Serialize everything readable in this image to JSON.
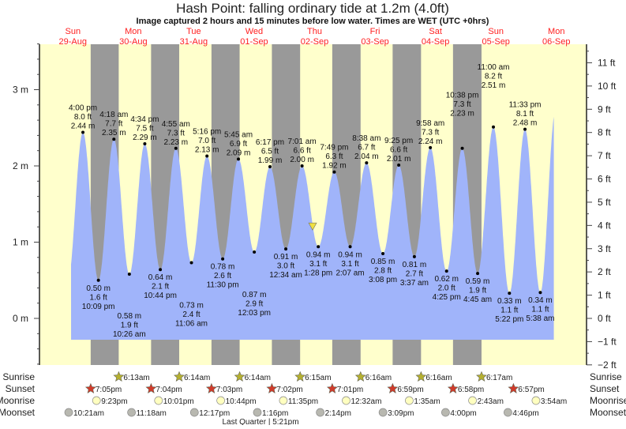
{
  "chart_data": {
    "type": "area",
    "title": "Hash Point: falling  ordinary tide at 1.2m (4.0ft)",
    "subtitle": "Image captured 2 hours and 15 minutes before low water. Times are WET (UTC +0hrs)",
    "days": [
      {
        "dow": "Sun",
        "date": "29-Aug"
      },
      {
        "dow": "Mon",
        "date": "30-Aug"
      },
      {
        "dow": "Tue",
        "date": "31-Aug"
      },
      {
        "dow": "Wed",
        "date": "01-Sep"
      },
      {
        "dow": "Thu",
        "date": "02-Sep"
      },
      {
        "dow": "Fri",
        "date": "03-Sep"
      },
      {
        "dow": "Sat",
        "date": "04-Sep"
      },
      {
        "dow": "Sun",
        "date": "05-Sep"
      },
      {
        "dow": "Mon",
        "date": "06-Sep"
      }
    ],
    "y_left": {
      "unit": "m",
      "range": [
        -0.6,
        3.6
      ],
      "ticks": [
        "0 m",
        "1 m",
        "2 m",
        "3 m"
      ]
    },
    "y_right": {
      "unit": "ft",
      "ticks": [
        "−2 ft",
        "−1 ft",
        "0 ft",
        "1 ft",
        "2 ft",
        "3 ft",
        "4 ft",
        "5 ft",
        "6 ft",
        "7 ft",
        "8 ft",
        "9 ft",
        "10 ft",
        "11 ft"
      ]
    },
    "current": {
      "date": "02-Sep",
      "time": "11:13am",
      "height_m": 1.2,
      "height_ft": 4.0,
      "state": "falling"
    },
    "extremes": [
      {
        "type": "high",
        "date": "29-Aug",
        "time": "4:00 pm",
        "m": "2.44 m",
        "ft": "8.0 ft"
      },
      {
        "type": "low",
        "date": "29-Aug",
        "time": "10:09 pm",
        "m": "0.50 m",
        "ft": "1.6 ft"
      },
      {
        "type": "high",
        "date": "30-Aug",
        "time": "4:18 am",
        "m": "2.35 m",
        "ft": "7.7 ft"
      },
      {
        "type": "low",
        "date": "30-Aug",
        "time": "10:26 am",
        "m": "0.58 m",
        "ft": "1.9 ft"
      },
      {
        "type": "high",
        "date": "30-Aug",
        "time": "4:34 pm",
        "m": "2.29 m",
        "ft": "7.5 ft"
      },
      {
        "type": "low",
        "date": "30-Aug",
        "time": "10:44 pm",
        "m": "0.64 m",
        "ft": "2.1 ft"
      },
      {
        "type": "high",
        "date": "31-Aug",
        "time": "4:55 am",
        "m": "2.23 m",
        "ft": "7.3 ft"
      },
      {
        "type": "low",
        "date": "31-Aug",
        "time": "11:06 am",
        "m": "0.73 m",
        "ft": "2.4 ft"
      },
      {
        "type": "high",
        "date": "31-Aug",
        "time": "5:16 pm",
        "m": "2.13 m",
        "ft": "7.0 ft"
      },
      {
        "type": "low",
        "date": "31-Aug",
        "time": "11:30 pm",
        "m": "0.78 m",
        "ft": "2.6 ft"
      },
      {
        "type": "high",
        "date": "01-Sep",
        "time": "5:45 am",
        "m": "2.09 m",
        "ft": "6.9 ft"
      },
      {
        "type": "low",
        "date": "01-Sep",
        "time": "12:03 pm",
        "m": "0.87 m",
        "ft": "2.9 ft"
      },
      {
        "type": "high",
        "date": "01-Sep",
        "time": "6:17 pm",
        "m": "1.99 m",
        "ft": "6.5 ft"
      },
      {
        "type": "low",
        "date": "02-Sep",
        "time": "12:34 am",
        "m": "0.91 m",
        "ft": "3.0 ft"
      },
      {
        "type": "high",
        "date": "02-Sep",
        "time": "7:01 am",
        "m": "2.00 m",
        "ft": "6.6 ft"
      },
      {
        "type": "low",
        "date": "02-Sep",
        "time": "1:28 pm",
        "m": "0.94 m",
        "ft": "3.1 ft"
      },
      {
        "type": "high",
        "date": "02-Sep",
        "time": "7:49 pm",
        "m": "1.92 m",
        "ft": "6.3 ft"
      },
      {
        "type": "low",
        "date": "03-Sep",
        "time": "2:07 am",
        "m": "0.94 m",
        "ft": "3.1 ft"
      },
      {
        "type": "high",
        "date": "03-Sep",
        "time": "8:38 am",
        "m": "2.04 m",
        "ft": "6.7 ft"
      },
      {
        "type": "low",
        "date": "03-Sep",
        "time": "3:08 pm",
        "m": "0.85 m",
        "ft": "2.8 ft"
      },
      {
        "type": "high",
        "date": "03-Sep",
        "time": "9:25 pm",
        "m": "2.01 m",
        "ft": "6.6 ft"
      },
      {
        "type": "low",
        "date": "04-Sep",
        "time": "3:37 am",
        "m": "0.81 m",
        "ft": "2.7 ft"
      },
      {
        "type": "high",
        "date": "04-Sep",
        "time": "9:58 am",
        "m": "2.24 m",
        "ft": "7.3 ft"
      },
      {
        "type": "low",
        "date": "04-Sep",
        "time": "4:25 pm",
        "m": "0.62 m",
        "ft": "2.0 ft"
      },
      {
        "type": "high",
        "date": "04-Sep",
        "time": "10:38 pm",
        "m": "2.23 m",
        "ft": "7.3 ft"
      },
      {
        "type": "low",
        "date": "05-Sep",
        "time": "4:45 am",
        "m": "0.59 m",
        "ft": "1.9 ft"
      },
      {
        "type": "high",
        "date": "05-Sep",
        "time": "11:00 am",
        "m": "2.51 m",
        "ft": "8.2 ft"
      },
      {
        "type": "low",
        "date": "05-Sep",
        "time": "5:22 pm",
        "m": "0.33 m",
        "ft": "1.1 ft"
      },
      {
        "type": "high",
        "date": "05-Sep",
        "time": "11:33 pm",
        "m": "2.48 m",
        "ft": "8.1 ft"
      },
      {
        "type": "low",
        "date": "06-Sep",
        "time": "5:38 am",
        "m": "0.34 m",
        "ft": "1.1 ft"
      }
    ],
    "almanac": {
      "labels": {
        "sunrise": "Sunrise",
        "sunset": "Sunset",
        "moonrise": "Moonrise",
        "moonset": "Moonset"
      },
      "sunrise": [
        {
          "date": "30-Aug",
          "time": "6:13am"
        },
        {
          "date": "31-Aug",
          "time": "6:14am"
        },
        {
          "date": "01-Sep",
          "time": "6:14am"
        },
        {
          "date": "02-Sep",
          "time": "6:15am"
        },
        {
          "date": "03-Sep",
          "time": "6:16am"
        },
        {
          "date": "04-Sep",
          "time": "6:16am"
        },
        {
          "date": "05-Sep",
          "time": "6:17am"
        }
      ],
      "sunset": [
        {
          "date": "29-Aug",
          "time": "7:05pm"
        },
        {
          "date": "30-Aug",
          "time": "7:04pm"
        },
        {
          "date": "31-Aug",
          "time": "7:03pm"
        },
        {
          "date": "01-Sep",
          "time": "7:02pm"
        },
        {
          "date": "02-Sep",
          "time": "7:01pm"
        },
        {
          "date": "03-Sep",
          "time": "6:59pm"
        },
        {
          "date": "04-Sep",
          "time": "6:58pm"
        },
        {
          "date": "05-Sep",
          "time": "6:57pm"
        }
      ],
      "moonrise": [
        {
          "date": "29-Aug",
          "time": "9:23pm"
        },
        {
          "date": "30-Aug",
          "time": "10:01pm"
        },
        {
          "date": "31-Aug",
          "time": "10:44pm"
        },
        {
          "date": "01-Sep",
          "time": "11:35pm"
        },
        {
          "date": "03-Sep",
          "time": "12:32am"
        },
        {
          "date": "04-Sep",
          "time": "1:35am"
        },
        {
          "date": "05-Sep",
          "time": "2:43am"
        },
        {
          "date": "06-Sep",
          "time": "3:54am"
        }
      ],
      "moonset": [
        {
          "date": "29-Aug",
          "time": "10:21am"
        },
        {
          "date": "30-Aug",
          "time": "11:18am"
        },
        {
          "date": "31-Aug",
          "time": "12:17pm"
        },
        {
          "date": "01-Sep",
          "time": "1:16pm"
        },
        {
          "date": "02-Sep",
          "time": "2:14pm"
        },
        {
          "date": "03-Sep",
          "time": "3:09pm"
        },
        {
          "date": "04-Sep",
          "time": "4:00pm"
        },
        {
          "date": "05-Sep",
          "time": "4:46pm"
        }
      ],
      "moon_phase": "Last Quarter | 5:21pm"
    },
    "colors": {
      "day": "#ffffcc",
      "night": "#999999",
      "water": "#a0b4fa",
      "date_labels": "#ff2020",
      "sunrise_icon": "#b5b030",
      "sunset_icon": "#d03a2a",
      "moonrise_icon": "#ffffc0",
      "moonset_icon": "#b8b8b0",
      "current_marker": "#f0e040"
    }
  }
}
